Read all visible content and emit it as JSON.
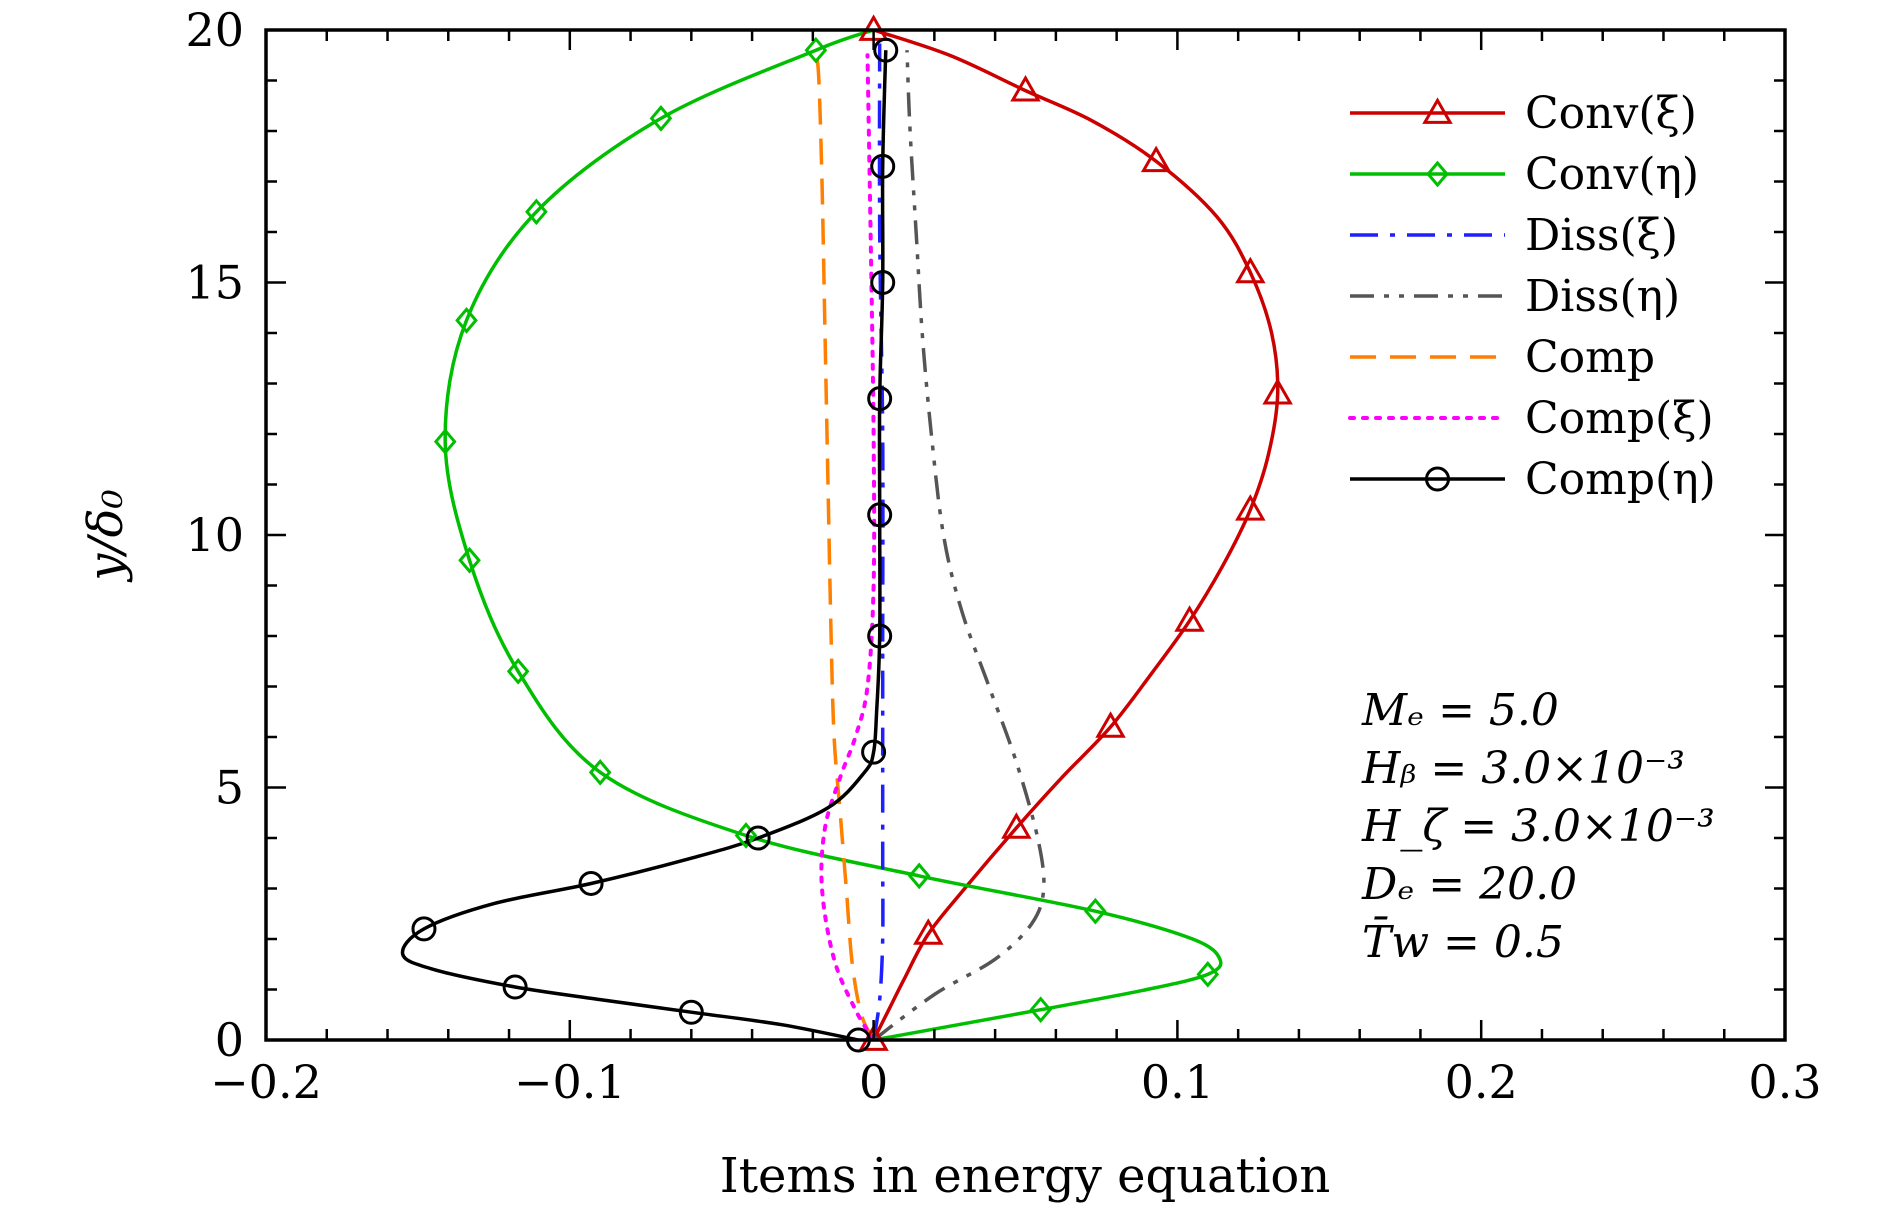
{
  "chart_data": {
    "type": "line",
    "xlabel": "Items in energy equation",
    "ylabel": "y/δ₀",
    "xlim": [
      -0.2,
      0.3
    ],
    "ylim": [
      0,
      20
    ],
    "x_ticks": [
      -0.2,
      -0.1,
      0,
      0.1,
      0.2,
      0.3
    ],
    "x_tick_labels": [
      "−0.2",
      "−0.1",
      "0",
      "0.1",
      "0.2",
      "0.3"
    ],
    "y_ticks": [
      0,
      5,
      10,
      15,
      20
    ],
    "y_tick_labels": [
      "0",
      "5",
      "10",
      "15",
      "20"
    ],
    "grid": false,
    "legend_position": "top-right",
    "annotations": [
      "Mₑ = 5.0",
      "Hᵦ = 3.0×10⁻³",
      "H_ζ = 3.0×10⁻³",
      "Dₑ = 20.0",
      "T̄w = 0.5"
    ],
    "series": [
      {
        "name": "Conv(ξ)",
        "color": "#cc0000",
        "dash": "solid",
        "marker": "triangle",
        "points": [
          [
            0.0,
            0.0
          ],
          [
            0.005,
            0.6
          ],
          [
            0.01,
            1.2
          ],
          [
            0.018,
            2.1
          ],
          [
            0.03,
            3.0
          ],
          [
            0.047,
            4.2
          ],
          [
            0.062,
            5.2
          ],
          [
            0.078,
            6.2
          ],
          [
            0.092,
            7.3
          ],
          [
            0.104,
            8.3
          ],
          [
            0.115,
            9.4
          ],
          [
            0.124,
            10.5
          ],
          [
            0.13,
            11.6
          ],
          [
            0.133,
            12.8
          ],
          [
            0.131,
            14.0
          ],
          [
            0.124,
            15.2
          ],
          [
            0.113,
            16.3
          ],
          [
            0.093,
            17.4
          ],
          [
            0.072,
            18.2
          ],
          [
            0.05,
            18.8
          ],
          [
            0.025,
            19.5
          ],
          [
            0.0,
            20.0
          ]
        ],
        "marker_points": [
          [
            0.0,
            0.0
          ],
          [
            0.018,
            2.1
          ],
          [
            0.047,
            4.2
          ],
          [
            0.078,
            6.2
          ],
          [
            0.104,
            8.3
          ],
          [
            0.124,
            10.5
          ],
          [
            0.133,
            12.8
          ],
          [
            0.124,
            15.2
          ],
          [
            0.093,
            17.4
          ],
          [
            0.05,
            18.8
          ],
          [
            0.0,
            20.0
          ]
        ]
      },
      {
        "name": "Conv(η)",
        "color": "#00bf00",
        "dash": "solid",
        "marker": "diamond",
        "points": [
          [
            0.0,
            0.0
          ],
          [
            0.055,
            0.6
          ],
          [
            0.09,
            1.0
          ],
          [
            0.11,
            1.3
          ],
          [
            0.114,
            1.6
          ],
          [
            0.105,
            2.0
          ],
          [
            0.073,
            2.55
          ],
          [
            0.015,
            3.25
          ],
          [
            -0.042,
            4.05
          ],
          [
            -0.09,
            5.3
          ],
          [
            -0.117,
            7.3
          ],
          [
            -0.133,
            9.5
          ],
          [
            -0.141,
            11.85
          ],
          [
            -0.134,
            14.25
          ],
          [
            -0.111,
            16.4
          ],
          [
            -0.07,
            18.25
          ],
          [
            -0.019,
            19.6
          ],
          [
            0.0,
            20.0
          ]
        ],
        "marker_points": [
          [
            0.055,
            0.6
          ],
          [
            0.11,
            1.3
          ],
          [
            0.073,
            2.55
          ],
          [
            0.015,
            3.25
          ],
          [
            -0.042,
            4.05
          ],
          [
            -0.09,
            5.3
          ],
          [
            -0.117,
            7.3
          ],
          [
            -0.133,
            9.5
          ],
          [
            -0.141,
            11.85
          ],
          [
            -0.134,
            14.25
          ],
          [
            -0.111,
            16.4
          ],
          [
            -0.07,
            18.25
          ],
          [
            -0.019,
            19.6
          ]
        ]
      },
      {
        "name": "Diss(ξ)",
        "color": "#1f1fff",
        "dash": "dashdot",
        "marker": "none",
        "points": [
          [
            0.0,
            0.0
          ],
          [
            0.002,
            0.8
          ],
          [
            0.003,
            2.0
          ],
          [
            0.003,
            3.5
          ],
          [
            0.003,
            5.0
          ],
          [
            0.003,
            8.0
          ],
          [
            0.003,
            12.0
          ],
          [
            0.002,
            16.0
          ],
          [
            0.002,
            20.0
          ]
        ]
      },
      {
        "name": "Diss(η)",
        "color": "#555555",
        "dash": "dashdotdot",
        "marker": "none",
        "points": [
          [
            0.0,
            0.0
          ],
          [
            0.02,
            0.9
          ],
          [
            0.04,
            1.6
          ],
          [
            0.052,
            2.3
          ],
          [
            0.056,
            3.0
          ],
          [
            0.054,
            4.0
          ],
          [
            0.047,
            5.5
          ],
          [
            0.038,
            7.0
          ],
          [
            0.029,
            8.5
          ],
          [
            0.023,
            10.0
          ],
          [
            0.019,
            12.0
          ],
          [
            0.016,
            14.0
          ],
          [
            0.014,
            16.0
          ],
          [
            0.012,
            18.0
          ],
          [
            0.011,
            19.6
          ]
        ]
      },
      {
        "name": "Comp",
        "color": "#ff7f00",
        "dash": "dashed",
        "marker": "none",
        "points": [
          [
            0.0,
            0.0
          ],
          [
            -0.004,
            0.5
          ],
          [
            -0.007,
            1.5
          ],
          [
            -0.009,
            3.0
          ],
          [
            -0.011,
            4.5
          ],
          [
            -0.013,
            6.0
          ],
          [
            -0.014,
            8.0
          ],
          [
            -0.015,
            11.0
          ],
          [
            -0.016,
            14.0
          ],
          [
            -0.017,
            17.0
          ],
          [
            -0.018,
            19.0
          ],
          [
            -0.019,
            19.6
          ]
        ]
      },
      {
        "name": "Comp(ξ)",
        "color": "#ff00ff",
        "dash": "dotted",
        "marker": "none",
        "points": [
          [
            0.0,
            0.0
          ],
          [
            -0.006,
            0.6
          ],
          [
            -0.013,
            1.6
          ],
          [
            -0.017,
            3.0
          ],
          [
            -0.016,
            4.2
          ],
          [
            -0.011,
            5.2
          ],
          [
            -0.006,
            6.0
          ],
          [
            -0.002,
            7.0
          ],
          [
            0.0,
            9.0
          ],
          [
            0.0,
            12.0
          ],
          [
            -0.001,
            16.0
          ],
          [
            -0.002,
            19.5
          ]
        ]
      },
      {
        "name": "Comp(η)",
        "color": "#000000",
        "dash": "solid",
        "marker": "circle",
        "points": [
          [
            -0.005,
            0.0
          ],
          [
            -0.03,
            0.3
          ],
          [
            -0.06,
            0.55
          ],
          [
            -0.09,
            0.8
          ],
          [
            -0.118,
            1.05
          ],
          [
            -0.145,
            1.4
          ],
          [
            -0.155,
            1.7
          ],
          [
            -0.148,
            2.2
          ],
          [
            -0.125,
            2.7
          ],
          [
            -0.093,
            3.1
          ],
          [
            -0.06,
            3.6
          ],
          [
            -0.038,
            4.0
          ],
          [
            -0.015,
            4.6
          ],
          [
            -0.003,
            5.3
          ],
          [
            0.0,
            5.7
          ],
          [
            0.001,
            6.5
          ],
          [
            0.002,
            8.0
          ],
          [
            0.002,
            10.4
          ],
          [
            0.002,
            12.7
          ],
          [
            0.003,
            15.0
          ],
          [
            0.003,
            17.3
          ],
          [
            0.004,
            19.6
          ]
        ],
        "marker_points": [
          [
            -0.005,
            0.0
          ],
          [
            -0.06,
            0.55
          ],
          [
            -0.118,
            1.05
          ],
          [
            -0.148,
            2.2
          ],
          [
            -0.093,
            3.1
          ],
          [
            -0.038,
            4.0
          ],
          [
            0.0,
            5.7
          ],
          [
            0.002,
            8.0
          ],
          [
            0.002,
            10.4
          ],
          [
            0.002,
            12.7
          ],
          [
            0.003,
            15.0
          ],
          [
            0.003,
            17.3
          ],
          [
            0.004,
            19.6
          ]
        ]
      }
    ]
  }
}
